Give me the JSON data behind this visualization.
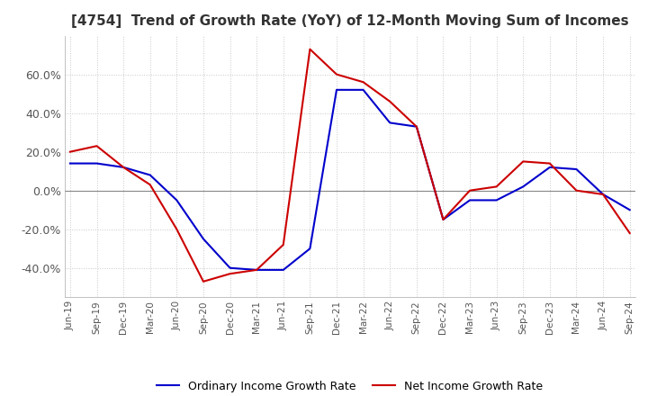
{
  "title": "[4754]  Trend of Growth Rate (YoY) of 12-Month Moving Sum of Incomes",
  "title_fontsize": 11,
  "ylim": [
    -55,
    80
  ],
  "yticks": [
    -40,
    -20,
    0,
    20,
    40,
    60
  ],
  "ytick_labels": [
    "-40.0%",
    "-20.0%",
    "0.0%",
    "20.0%",
    "40.0%",
    "60.0%"
  ],
  "background_color": "#ffffff",
  "grid_color": "#c8c8c8",
  "line1_color": "#0000cc",
  "line2_color": "#cc0000",
  "line1_label": "Ordinary Income Growth Rate",
  "line2_label": "Net Income Growth Rate",
  "x_labels": [
    "Jun-19",
    "Sep-19",
    "Dec-19",
    "Mar-20",
    "Jun-20",
    "Sep-20",
    "Dec-20",
    "Mar-21",
    "Jun-21",
    "Sep-21",
    "Dec-21",
    "Mar-22",
    "Jun-22",
    "Sep-22",
    "Dec-22",
    "Mar-23",
    "Jun-23",
    "Sep-23",
    "Dec-23",
    "Mar-24",
    "Jun-24",
    "Sep-24"
  ],
  "ordinary_income": [
    14.0,
    14.0,
    12.0,
    8.0,
    -5.0,
    -25.0,
    -40.0,
    -41.0,
    -41.0,
    -30.0,
    52.0,
    52.0,
    35.0,
    33.0,
    -15.0,
    -5.0,
    -5.0,
    2.0,
    12.0,
    11.0,
    -2.0,
    -10.0
  ],
  "net_income": [
    20.0,
    23.0,
    12.0,
    3.0,
    -20.0,
    -47.0,
    -43.0,
    -41.0,
    -28.0,
    73.0,
    60.0,
    56.0,
    46.0,
    33.0,
    -15.0,
    0.0,
    2.0,
    15.0,
    14.0,
    0.0,
    -2.0,
    -22.0
  ]
}
